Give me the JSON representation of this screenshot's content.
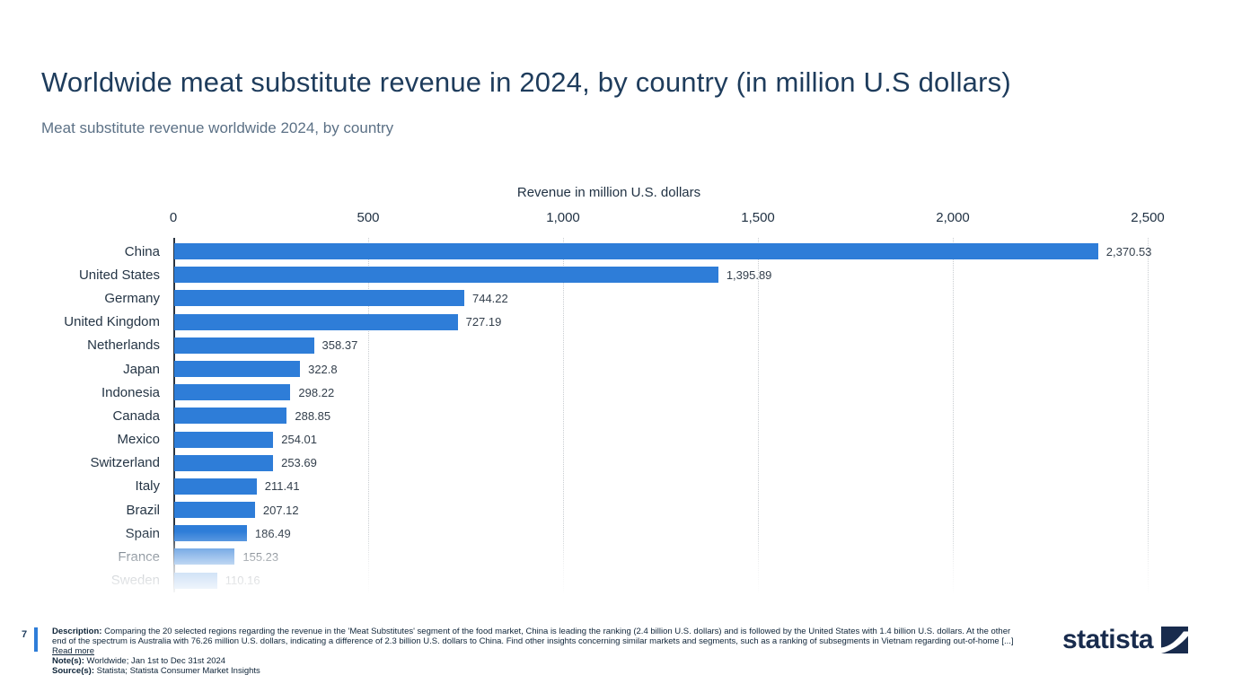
{
  "page": {
    "title": "Worldwide meat substitute revenue in 2024, by country (in million U.S dollars)",
    "subtitle": "Meat substitute revenue worldwide 2024, by country",
    "page_number": "7"
  },
  "chart_data": {
    "type": "bar",
    "orientation": "horizontal",
    "title": "Worldwide meat substitute revenue in 2024, by country (in million U.S dollars)",
    "xlabel": "Revenue in million U.S. dollars",
    "ylabel": "",
    "xlim": [
      0,
      2500
    ],
    "x_ticks": [
      "0",
      "500",
      "1,000",
      "1,500",
      "2,000",
      "2,500"
    ],
    "x_tick_values": [
      0,
      500,
      1000,
      1500,
      2000,
      2500
    ],
    "grid": "dotted-vertical",
    "categories": [
      "China",
      "United States",
      "Germany",
      "United Kingdom",
      "Netherlands",
      "Japan",
      "Indonesia",
      "Canada",
      "Mexico",
      "Switzerland",
      "Italy",
      "Brazil",
      "Spain",
      "France",
      "Sweden"
    ],
    "values": [
      2370.53,
      1395.89,
      744.22,
      727.19,
      358.37,
      322.8,
      298.22,
      288.85,
      254.01,
      253.69,
      211.41,
      207.12,
      186.49,
      155.23,
      110.16
    ],
    "value_labels": [
      "2,370.53",
      "1,395.89",
      "744.22",
      "727.19",
      "358.37",
      "322.8",
      "298.22",
      "288.85",
      "254.01",
      "253.69",
      "211.41",
      "207.12",
      "186.49",
      "155.23",
      "110.16"
    ],
    "bar_color": "#2E7DD8",
    "faded_bottom_categories": [
      "France",
      "Sweden"
    ],
    "note": "chart is cropped at the bottom with a fade-out; list continues beyond Sweden"
  },
  "footer": {
    "description_label": "Description:",
    "description": "Comparing the 20 selected regions regarding the revenue in the 'Meat Substitutes' segment of the food market, China is leading the ranking (2.4 billion U.S. dollars) and is followed by the United States with 1.4 billion U.S. dollars. At the other end of the spectrum is Australia with 76.26 million U.S. dollars, indicating a difference of 2.3 billion U.S. dollars to China. Find other insights concerning similar markets and segments, such as a ranking of subsegments in Vietnam regarding out-of-home [...]",
    "read_more": "Read more",
    "notes_label": "Note(s):",
    "notes": "Worldwide; Jan 1st to Dec 31st 2024",
    "sources_label": "Source(s):",
    "sources": "Statista; Statista Consumer Market Insights",
    "brand": "statista"
  },
  "colors": {
    "bar_blue": "#2E7DD8",
    "title_navy": "#1E3C5C",
    "subtitle_gray": "#5C7186",
    "axis_text": "#1F3042",
    "accent_bar_blue": "#2E7DD8",
    "logo_navy": "#182B4D",
    "gridline_gray": "#C9CDD1"
  }
}
